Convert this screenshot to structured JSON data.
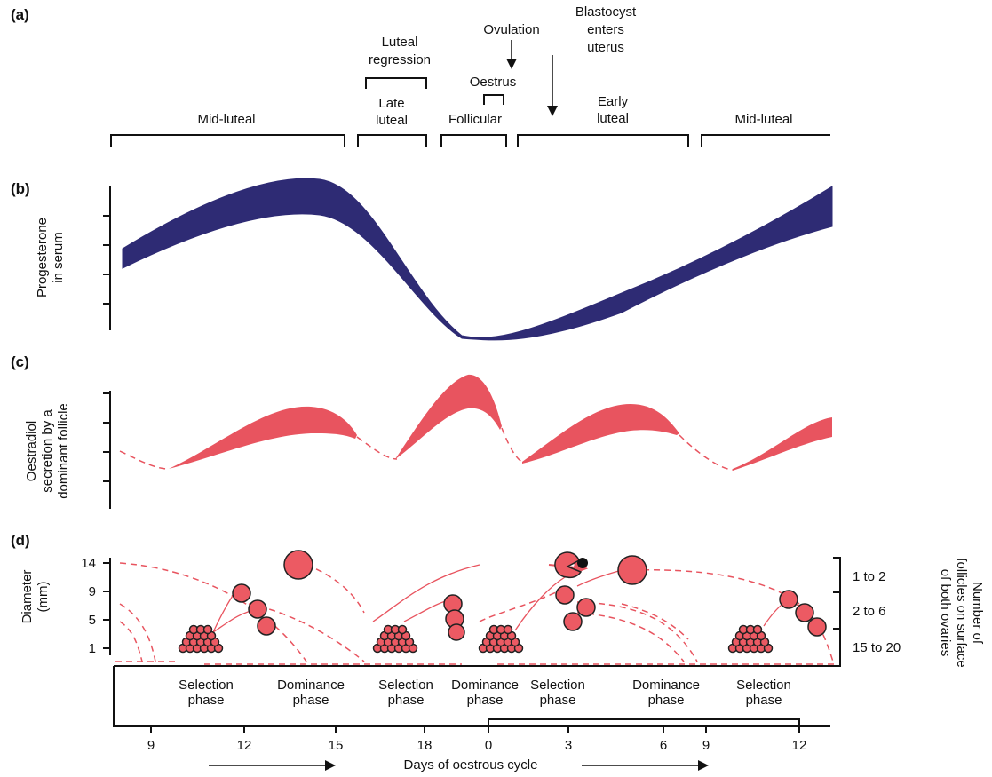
{
  "panel_labels": [
    "(a)",
    "(b)",
    "(c)",
    "(d)"
  ],
  "stages": {
    "phases": [
      [
        "Mid-luteal"
      ],
      [
        "Late",
        "luteal"
      ],
      [
        "Follicular"
      ],
      [
        "Early",
        "luteal"
      ],
      [
        "Mid-luteal"
      ]
    ],
    "events": {
      "luteal_regression": [
        "Luteal",
        "regression"
      ],
      "oestrus": "Oestrus",
      "ovulation": "Ovulation",
      "blastocyst": [
        "Blastocyst",
        "enters",
        "uterus"
      ]
    }
  },
  "progesterone": {
    "y_label": [
      "Progesterone",
      "in serum"
    ]
  },
  "oestradiol": {
    "y_label": [
      "Oestradiol",
      "secretion by a",
      "dominant follicle"
    ]
  },
  "follicles": {
    "y_label": [
      "Diameter",
      "(mm)"
    ],
    "y_ticks": [
      "14",
      "9",
      "5",
      "1"
    ],
    "count_ranges": [
      "1 to 2",
      "2 to 6",
      "15 to 20"
    ],
    "count_label": [
      "Number of",
      "follicles on surface",
      "of both ovaries"
    ],
    "phases": [
      [
        "Selection",
        "phase"
      ],
      [
        "Dominance",
        "phase"
      ],
      [
        "Selection",
        "phase"
      ],
      [
        "Dominance",
        "phase"
      ],
      [
        "Selection",
        "phase"
      ],
      [
        "Dominance",
        "phase"
      ],
      [
        "Selection",
        "phase"
      ]
    ],
    "day_ticks": [
      "9",
      "12",
      "15",
      "18",
      "0",
      "3",
      "6",
      "9",
      "12"
    ],
    "x_label": "Days of oestrous cycle"
  }
}
